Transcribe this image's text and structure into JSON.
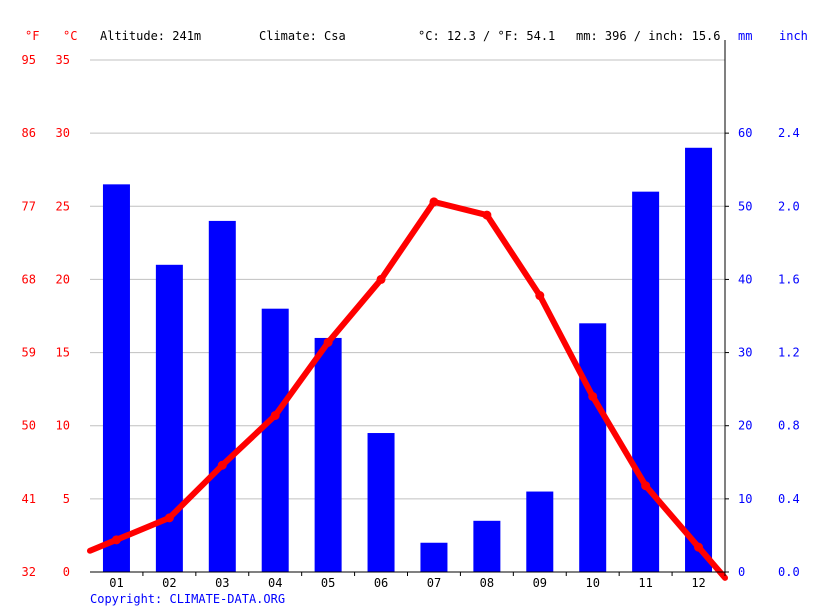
{
  "header": {
    "unit_f": "°F",
    "unit_c": "°C",
    "altitude": "Altitude: 241m",
    "climate": "Climate: Csa",
    "temp_avg": "°C: 12.3 / °F: 54.1",
    "precip_total": "mm: 396 / inch: 15.6",
    "unit_mm": "mm",
    "unit_inch": "inch"
  },
  "footer": {
    "copyright": "Copyright: CLIMATE-DATA.ORG"
  },
  "colors": {
    "temperature": "#ff0000",
    "precipitation": "#0000ff",
    "grid": "#c0c0c0"
  },
  "chart_data": {
    "type": "bar",
    "categories": [
      "01",
      "02",
      "03",
      "04",
      "05",
      "06",
      "07",
      "08",
      "09",
      "10",
      "11",
      "12"
    ],
    "series": [
      {
        "kind": "bar",
        "axis": "mm",
        "values": [
          53,
          42,
          48,
          36,
          32,
          19,
          4,
          7,
          11,
          34,
          52,
          58
        ]
      },
      {
        "kind": "line",
        "axis": "celsius",
        "values": [
          2.2,
          3.7,
          7.3,
          10.7,
          15.7,
          20.0,
          25.3,
          24.4,
          18.9,
          12.0,
          5.9,
          1.7
        ]
      }
    ],
    "y_celsius": {
      "range": [
        0,
        35
      ],
      "ticks": [
        "0",
        "5",
        "10",
        "15",
        "20",
        "25",
        "30",
        "35"
      ]
    },
    "y_fahrenheit": {
      "range": [
        32,
        95
      ],
      "ticks": [
        "32",
        "41",
        "50",
        "59",
        "68",
        "77",
        "86",
        "95"
      ]
    },
    "y_mm": {
      "range": [
        0,
        70
      ],
      "ticks": [
        "0",
        "10",
        "20",
        "30",
        "40",
        "50",
        "60"
      ]
    },
    "y_inch": {
      "ticks": [
        "0.0",
        "0.4",
        "0.8",
        "1.2",
        "1.6",
        "2.0",
        "2.4"
      ]
    },
    "grid": true
  }
}
